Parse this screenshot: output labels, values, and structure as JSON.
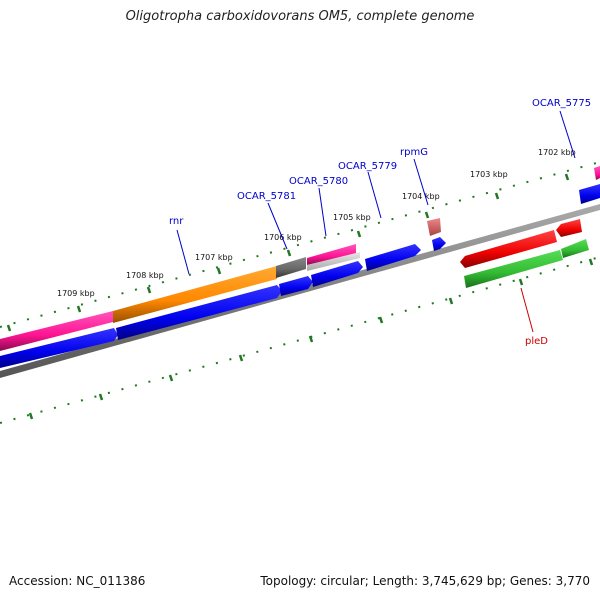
{
  "title": "Oligotropha carboxidovorans OM5, complete genome",
  "accession": "Accession: NC_011386",
  "topology": "Topology: circular; Length: 3,745,629 bp; Genes: 3,770",
  "kbp_labels": [
    "1709 kbp",
    "1708 kbp",
    "1707 kbp",
    "1706 kbp",
    "1705 kbp",
    "1704 kbp",
    "1703 kbp",
    "1702 kbp"
  ],
  "gene_labels": {
    "rnr": "rnr",
    "ocar_5781": "OCAR_5781",
    "ocar_5780": "OCAR_5780",
    "ocar_5779": "OCAR_5779",
    "rpmg": "rpmG",
    "ocar_5775": "OCAR_5775",
    "pled": "pleD"
  },
  "colors": {
    "forward_cds": "#0000ff",
    "reverse_cds": "#ff0000",
    "rna": "#ff8800",
    "pink_feature": "#ff1493",
    "green_feature": "#33bb33",
    "tick": "#227722",
    "backbone": "#888888",
    "forward_label": "#0000cc",
    "reverse_label": "#cc0000"
  }
}
